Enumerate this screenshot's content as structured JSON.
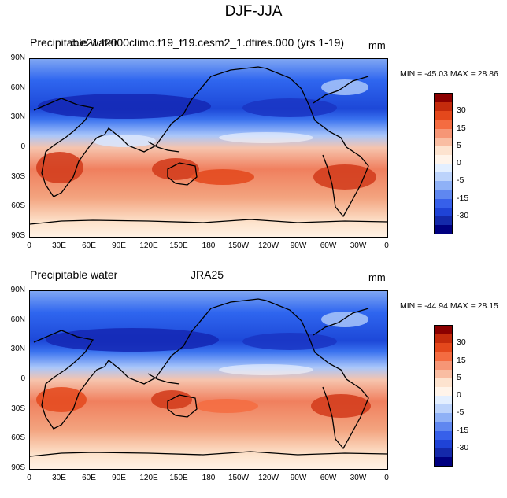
{
  "figure": {
    "title": "DJF-JJA"
  },
  "panels": [
    {
      "variable": "Precipitable water",
      "case": "b.e21.f2000climo.f19_f19.cesm2_1.dfires.000 (yrs 1-19)",
      "units": "mm",
      "minmax": "MIN = -45.03 MAX =  28.86"
    },
    {
      "variable": "Precipitable water",
      "case": "JRA25",
      "units": "mm",
      "minmax": "MIN = -44.94 MAX =  28.15"
    }
  ],
  "axes": {
    "lat_ticks": [
      "90N",
      "60N",
      "30N",
      "0",
      "30S",
      "60S",
      "90S"
    ],
    "lon_ticks": [
      "0",
      "30E",
      "60E",
      "90E",
      "120E",
      "150E",
      "180",
      "150W",
      "120W",
      "90W",
      "60W",
      "30W",
      "0"
    ]
  },
  "colorbar": {
    "tick_labels": [
      "30",
      "15",
      "5",
      "0",
      "-5",
      "-15",
      "-30"
    ],
    "colors": [
      "#8b0000",
      "#c42b0c",
      "#e4481c",
      "#f46c41",
      "#f69676",
      "#f9bda2",
      "#fde3cf",
      "#fff4ea",
      "#e3efff",
      "#bcd3fb",
      "#8fb1f6",
      "#5f87f0",
      "#3760ea",
      "#1f43d6",
      "#1429aa",
      "#000080"
    ]
  }
}
